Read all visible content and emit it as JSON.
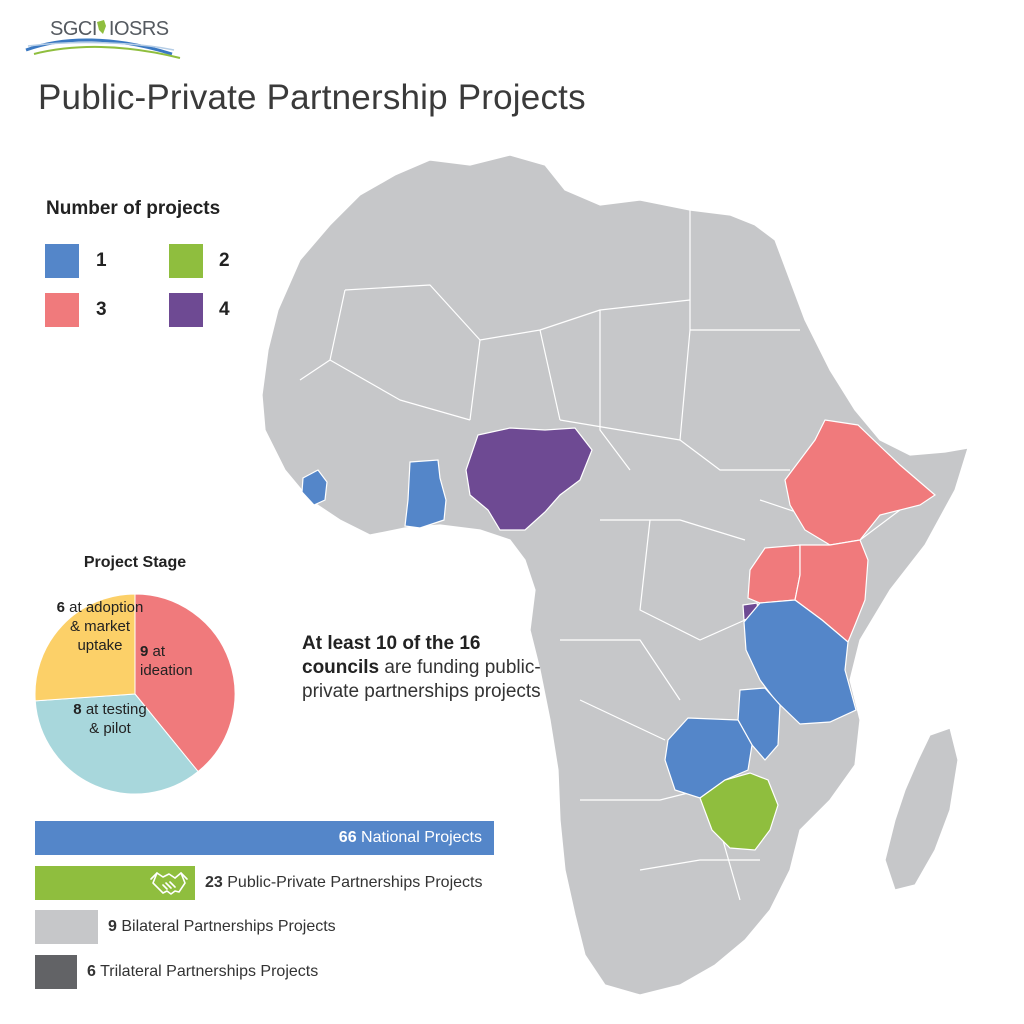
{
  "logo": {
    "text": "SGCI",
    "text2": "IOSRS"
  },
  "title": "Public-Private Partnership Projects",
  "legend": {
    "title": "Number of projects",
    "items": [
      {
        "label": "1",
        "color": "#5486c9"
      },
      {
        "label": "2",
        "color": "#8fbe3e"
      },
      {
        "label": "3",
        "color": "#f07a7c"
      },
      {
        "label": "4",
        "color": "#6e4a93"
      }
    ]
  },
  "map": {
    "base_color": "#c6c7c9",
    "highlighted": [
      {
        "region": "Liberia",
        "projects": 1
      },
      {
        "region": "Ghana",
        "projects": 1
      },
      {
        "region": "Nigeria",
        "projects": 4
      },
      {
        "region": "Ethiopia",
        "projects": 3
      },
      {
        "region": "Uganda",
        "projects": 3
      },
      {
        "region": "Kenya",
        "projects": 3
      },
      {
        "region": "Rwanda",
        "projects": 4
      },
      {
        "region": "Tanzania",
        "projects": 1
      },
      {
        "region": "Malawi",
        "projects": 1
      },
      {
        "region": "Zambia",
        "projects": 1
      },
      {
        "region": "Zimbabwe",
        "projects": 2
      }
    ]
  },
  "project_stage": {
    "title": "Project Stage",
    "slices": [
      {
        "value": "9",
        "label": "at ideation",
        "count": 9,
        "color": "#f07a7c"
      },
      {
        "value": "8",
        "label": "at testing & pilot",
        "count": 8,
        "color": "#a8d7dc"
      },
      {
        "value": "6",
        "label": "at adoption & market uptake",
        "count": 6,
        "color": "#fcd068"
      }
    ]
  },
  "statement": {
    "bold": "At least 10 of the 16 councils",
    "rest": " are funding public-private partnerships projects"
  },
  "bars": [
    {
      "value": "66",
      "label": "National Projects",
      "count": 66,
      "color": "#5486c9"
    },
    {
      "value": "23",
      "label": "Public-Private Partnerships Projects",
      "count": 23,
      "color": "#8fbe3e"
    },
    {
      "value": "9",
      "label": "Bilateral Partnerships Projects",
      "count": 9,
      "color": "#c6c7c9"
    },
    {
      "value": "6",
      "label": "Trilateral Partnerships Projects",
      "count": 6,
      "color": "#626366"
    }
  ],
  "icons": {
    "handshake": "handshake-icon"
  }
}
